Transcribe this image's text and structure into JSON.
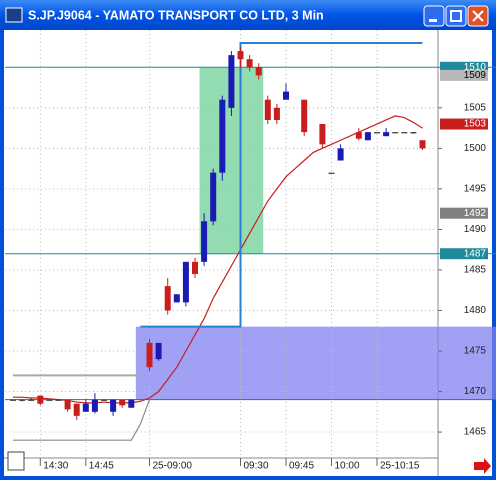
{
  "chart_data": {
    "type": "candlestick",
    "title": "S.JP.J9064 - YAMATO TRANSPORT CO LTD, 3 Min",
    "categories": [
      null,
      null,
      null,
      "14:30",
      null,
      null,
      null,
      null,
      "14:45",
      null,
      null,
      null,
      null,
      null,
      null,
      "25-09:00",
      null,
      null,
      null,
      null,
      null,
      null,
      null,
      null,
      null,
      "09:30",
      null,
      null,
      null,
      null,
      "09:45",
      null,
      null,
      null,
      null,
      "10:00",
      null,
      null,
      null,
      null,
      "25-10:15",
      null,
      null,
      null,
      null,
      null
    ],
    "open": [
      1469,
      1469,
      1469,
      1469.5,
      1469,
      1469,
      1469,
      1468.5,
      1467.5,
      1467.5,
      1469,
      1467.5,
      1469,
      1468,
      null,
      1476,
      1474,
      1483,
      1481,
      1481,
      1486,
      1486,
      1491,
      1497,
      1505,
      1512,
      1511,
      1510,
      1506,
      1505,
      1506,
      null,
      1506,
      null,
      1503,
      1497,
      1498.5,
      null,
      1502,
      1501,
      1502,
      1501.5,
      1502,
      1502,
      1502,
      1501
    ],
    "high": [
      1469,
      1469,
      1469.2,
      1469.5,
      1469,
      1469,
      1469,
      1468.5,
      1469,
      1469.8,
      1469,
      1469,
      1469,
      1469,
      null,
      1476.5,
      1476,
      1484,
      1482,
      1486,
      1486.5,
      1492,
      1497.5,
      1506.5,
      1512,
      1512.5,
      1511.5,
      1510.5,
      1506.5,
      1505.5,
      1508,
      null,
      1506,
      null,
      1503,
      1497,
      1500.5,
      null,
      1502.5,
      1502,
      1502,
      1502.5,
      1502,
      1502,
      1502,
      1501
    ],
    "low": [
      1469,
      1468.8,
      1469,
      1468.3,
      1469,
      1469,
      1467.5,
      1466.5,
      1467.5,
      1467.3,
      1469,
      1467,
      1468,
      1468,
      null,
      1472.5,
      1473.8,
      1479.5,
      1481,
      1480.5,
      1484,
      1485.5,
      1490.5,
      1496,
      1504,
      1510,
      1509.5,
      1508.5,
      1503,
      1503,
      1506,
      null,
      1501.5,
      null,
      1500,
      1497,
      1498.5,
      null,
      1501,
      1501,
      1502,
      1501.5,
      1502,
      1502,
      1501.8,
      1499.8
    ],
    "close": [
      1469,
      1469,
      1469,
      1468.5,
      1469,
      1469,
      1467.8,
      1467,
      1468.5,
      1469,
      1469,
      1469,
      1468.3,
      1469,
      null,
      1473,
      1476,
      1480,
      1482,
      1486,
      1484.5,
      1491,
      1497,
      1506,
      1511.5,
      1511,
      1510,
      1509,
      1503.5,
      1503.5,
      1507,
      null,
      1502,
      null,
      1500.5,
      1497,
      1500,
      null,
      1501.2,
      1502,
      1502,
      1502,
      1502,
      1502,
      1502,
      1500
    ],
    "up_color": "#1a1ab4",
    "down_color": "#c81e1e",
    "lines": [
      {
        "color": "#c81e1e",
        "step": false,
        "values": [
          1469.3,
          1469.3,
          1469.2,
          1469.2,
          1469.1,
          1469,
          1468.9,
          1468.7,
          1468.6,
          1468.6,
          1468.7,
          1468.6,
          1468.6,
          1468.6,
          1468.8,
          1469.2,
          1470,
          1471.5,
          1473,
          1475,
          1477,
          1479,
          1481.5,
          1483.5,
          1485.5,
          1487.5,
          1489.5,
          1491.5,
          1493.5,
          1495,
          1496.5,
          1497.5,
          1498.5,
          1499.5,
          1500,
          1500.5,
          1501,
          1501.5,
          1502,
          1502.5,
          1503,
          1503.5,
          1504,
          1503.8,
          1503.2,
          1502.5
        ]
      },
      {
        "color": "#2a7fd4",
        "step": true,
        "values": [
          null,
          null,
          null,
          null,
          null,
          null,
          null,
          null,
          null,
          null,
          null,
          null,
          null,
          null,
          1478,
          1478,
          1478,
          1478,
          1478,
          1478,
          1478,
          1478,
          1478,
          1478,
          1478,
          1513,
          1513,
          1513,
          1513,
          1513,
          1513,
          1513,
          1513,
          1513,
          1513,
          1513,
          1513,
          1513,
          1513,
          1513,
          1513,
          1513,
          1513,
          1513,
          1513,
          1513
        ]
      },
      {
        "color": "#a8a8a8",
        "step": true,
        "values": [
          1472,
          1472,
          1472,
          1472,
          1472,
          1472,
          1472,
          1472,
          1472,
          1472,
          1472,
          1472,
          1472,
          1472,
          1472,
          null,
          null,
          null,
          null,
          null,
          null,
          null,
          null,
          null,
          null,
          null,
          null,
          null,
          null,
          null,
          null,
          null,
          null,
          null,
          null,
          null,
          null,
          null,
          null,
          null,
          null,
          null,
          null,
          null,
          null,
          null
        ]
      },
      {
        "color": "#8a8a8a",
        "step": false,
        "values": [
          1464,
          1464,
          1464,
          1464,
          1464,
          1464,
          1464,
          1464,
          1464,
          1464,
          1464,
          1464,
          1464,
          1464,
          1466,
          1469,
          null,
          null,
          null,
          null,
          null,
          null,
          null,
          null,
          null,
          null,
          null,
          null,
          null,
          null,
          null,
          null,
          null,
          null,
          null,
          null,
          null,
          null,
          null,
          null,
          null,
          null,
          null,
          null,
          null,
          null
        ]
      }
    ],
    "zones": [
      {
        "color": "#6fcf97",
        "low": 1487,
        "high": 1510,
        "start": 21,
        "end": 27
      },
      {
        "color": "#8080f0",
        "low": 1469,
        "high": 1478,
        "start": 14
      }
    ],
    "hlines": [
      {
        "value": 1510,
        "color": "#1f8a9a"
      },
      {
        "value": 1487,
        "color": "#1f8a9a"
      },
      {
        "value": 1469,
        "color": "#606060"
      }
    ],
    "markers": [
      {
        "value": 1510,
        "color": "#1f8a9a"
      },
      {
        "value": 1509,
        "color": "#b8b8b8"
      },
      {
        "value": 1503,
        "color": "#c81e1e"
      },
      {
        "value": 1492,
        "color": "#808080"
      },
      {
        "value": 1487,
        "color": "#1f8a9a"
      }
    ],
    "ylim": [
      1461.8,
      1514.6
    ],
    "yticks": [
      1465,
      1470,
      1475,
      1480,
      1485,
      1490,
      1495,
      1500,
      1505
    ],
    "grid": true
  }
}
